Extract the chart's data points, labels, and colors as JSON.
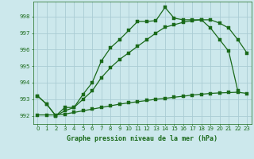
{
  "title": "Graphe pression niveau de la mer (hPa)",
  "background_color": "#cce8ec",
  "grid_color": "#aaccd4",
  "line_color": "#1a6a1a",
  "xlim": [
    -0.5,
    23.5
  ],
  "ylim": [
    991.5,
    998.9
  ],
  "yticks": [
    992,
    993,
    994,
    995,
    996,
    997,
    998
  ],
  "xticks": [
    0,
    1,
    2,
    3,
    4,
    5,
    6,
    7,
    8,
    9,
    10,
    11,
    12,
    13,
    14,
    15,
    16,
    17,
    18,
    19,
    20,
    21,
    22,
    23
  ],
  "series1_x": [
    0,
    1,
    2,
    3,
    4,
    5,
    6,
    7,
    8,
    9,
    10,
    11,
    12,
    13,
    14,
    15,
    16,
    17,
    18,
    19,
    20,
    21,
    22
  ],
  "series1_y": [
    993.2,
    992.7,
    992.0,
    992.5,
    992.5,
    993.3,
    994.0,
    995.3,
    996.1,
    996.6,
    997.15,
    997.7,
    997.7,
    997.75,
    998.55,
    997.9,
    997.8,
    997.8,
    997.8,
    997.3,
    996.6,
    995.9,
    993.5
  ],
  "series2_x": [
    0,
    1,
    2,
    3,
    4,
    5,
    6,
    7,
    8,
    9,
    10,
    11,
    12,
    13,
    14,
    15,
    16,
    17,
    18,
    19,
    20,
    21,
    22,
    23
  ],
  "series2_y": [
    993.2,
    992.7,
    992.0,
    992.3,
    992.5,
    993.0,
    993.5,
    994.3,
    994.9,
    995.4,
    995.8,
    996.2,
    996.6,
    997.0,
    997.35,
    997.5,
    997.65,
    997.75,
    997.8,
    997.8,
    997.6,
    997.3,
    996.6,
    995.8
  ],
  "series3_x": [
    0,
    1,
    2,
    3,
    4,
    5,
    6,
    7,
    8,
    9,
    10,
    11,
    12,
    13,
    14,
    15,
    16,
    17,
    18,
    19,
    20,
    21,
    22,
    23
  ],
  "series3_y": [
    992.05,
    992.05,
    992.05,
    992.1,
    992.2,
    992.3,
    992.4,
    992.5,
    992.6,
    992.7,
    992.78,
    992.85,
    992.92,
    993.0,
    993.05,
    993.12,
    993.18,
    993.25,
    993.3,
    993.35,
    993.38,
    993.4,
    993.42,
    993.35
  ]
}
